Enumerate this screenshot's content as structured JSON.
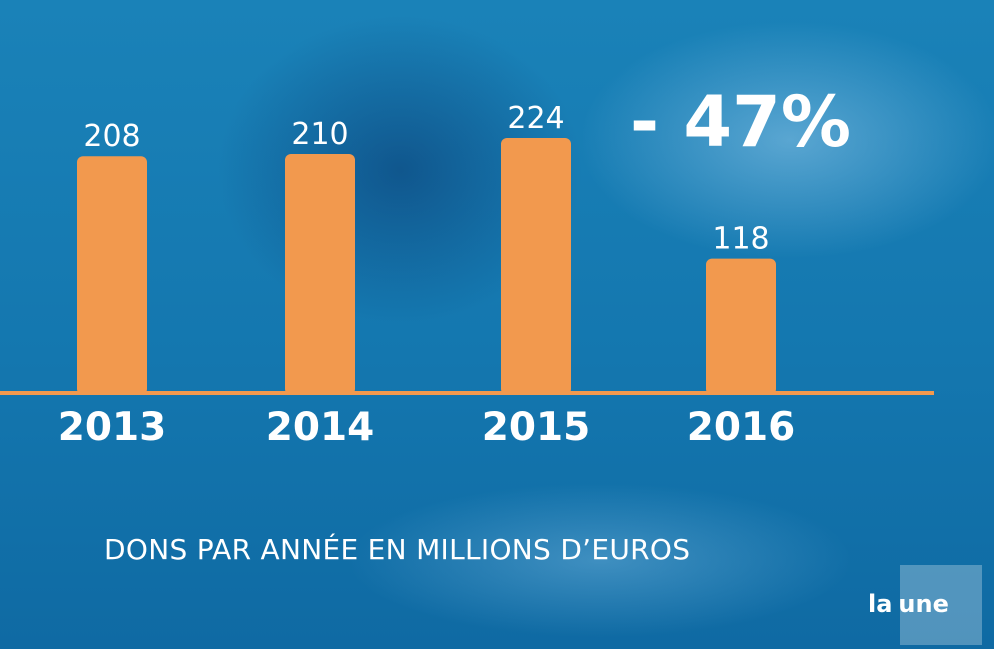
{
  "chart_data": {
    "type": "bar",
    "categories": [
      "2013",
      "2014",
      "2015",
      "2016"
    ],
    "values": [
      208,
      210,
      224,
      118
    ],
    "value_labels": [
      "208",
      "210",
      "224",
      "118"
    ],
    "ylim": [
      0,
      224
    ],
    "grid": false,
    "annotation": "- 47%",
    "caption": "DONS PAR ANNÉE EN MILLIONS D’EUROS",
    "colors": {
      "bar": "#f2994e",
      "axis": "#f2994e",
      "text": "#ffffff"
    }
  },
  "branding": {
    "logo_part1": "la",
    "logo_part2": "une"
  }
}
